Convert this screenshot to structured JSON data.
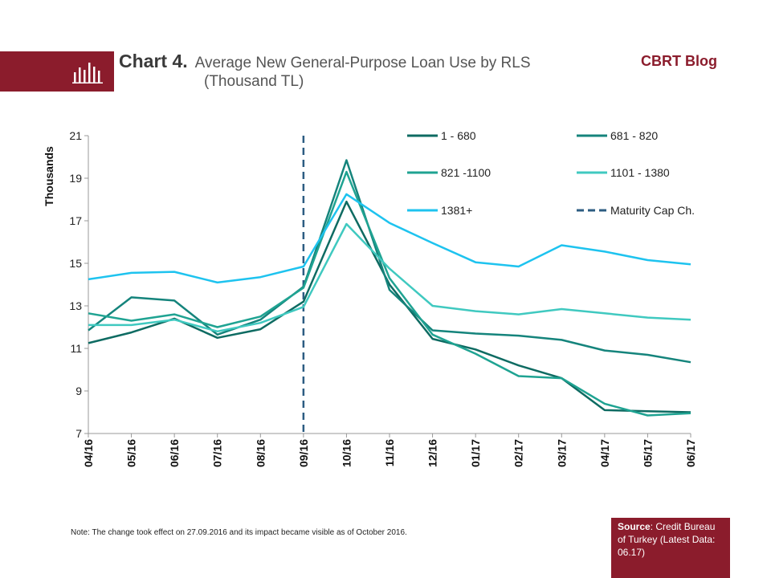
{
  "header": {
    "title_bold": "Chart 4.",
    "title_line1": "Average New General-Purpose  Loan Use by  RLS",
    "title_line2": "(Thousand TL)",
    "brand": "CBRT Blog"
  },
  "note": "Note: The change took effect on 27.09.2016 and its impact became visible as of October 2016.",
  "source": {
    "label": "Source",
    "text": ": Credit Bureau of Turkey (Latest Data: 06.17)"
  },
  "colors": {
    "brand": "#8b1c2c"
  },
  "chart_data": {
    "type": "line",
    "ylabel": "Thousands",
    "ylim": [
      7,
      21
    ],
    "yticks": [
      7,
      9,
      11,
      13,
      15,
      17,
      19,
      21
    ],
    "categories": [
      "04/16",
      "05/16",
      "06/16",
      "07/16",
      "08/16",
      "09/16",
      "10/16",
      "11/16",
      "12/16",
      "01/17",
      "02/17",
      "03/17",
      "04/17",
      "05/17",
      "06/17"
    ],
    "grid": false,
    "legend_placement": "top-right",
    "series": [
      {
        "name": "1 - 680",
        "color": "#0e6b62",
        "values": [
          11.25,
          11.75,
          12.4,
          11.5,
          11.9,
          13.2,
          17.9,
          14.0,
          11.45,
          10.95,
          10.2,
          9.6,
          8.1,
          8.05,
          8.0
        ]
      },
      {
        "name": "681 - 820",
        "color": "#15847c",
        "values": [
          11.85,
          13.4,
          13.25,
          11.65,
          12.35,
          13.9,
          19.85,
          13.75,
          11.85,
          11.7,
          11.6,
          11.4,
          10.9,
          10.7,
          10.35
        ]
      },
      {
        "name": "821 -1100",
        "color": "#1fa392",
        "values": [
          12.65,
          12.3,
          12.6,
          12.0,
          12.5,
          13.85,
          19.3,
          14.3,
          11.65,
          10.75,
          9.7,
          9.6,
          8.4,
          7.85,
          7.95
        ]
      },
      {
        "name": "1101 - 1380",
        "color": "#40c9c0",
        "values": [
          12.1,
          12.1,
          12.35,
          11.8,
          12.2,
          12.95,
          16.85,
          14.75,
          13.0,
          12.75,
          12.6,
          12.85,
          12.65,
          12.45,
          12.35
        ]
      },
      {
        "name": "1381+",
        "color": "#1ec3ef",
        "values": [
          14.25,
          14.55,
          14.6,
          14.1,
          14.35,
          14.85,
          18.25,
          16.9,
          15.95,
          15.05,
          14.85,
          15.85,
          15.55,
          15.15,
          14.95
        ]
      }
    ],
    "annotation": {
      "name": "Maturity Cap Ch.",
      "x": "09/16",
      "color": "#2c5c82"
    }
  }
}
